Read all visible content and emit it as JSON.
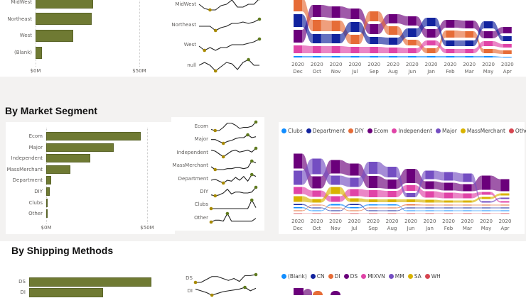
{
  "colors": {
    "bar": "#6F7A33",
    "spark_line": "#222222",
    "spark_min": "#A88A00",
    "spark_max": "#5F7A1E"
  },
  "region": {
    "bar_chart": {
      "type": "bar",
      "categories": [
        "MidWest",
        "Northeast",
        "West",
        "(Blank)"
      ],
      "values": [
        27.7,
        27,
        18,
        3
      ],
      "xlim": [
        0,
        50
      ],
      "tick_labels": [
        "$0M",
        "$50M"
      ]
    },
    "sparklines": [
      {
        "label": "MidWest",
        "values": [
          6,
          3,
          2,
          2,
          5,
          6,
          9,
          4,
          4,
          6,
          6,
          10
        ]
      },
      {
        "label": "Northeast",
        "values": [
          5,
          5,
          5,
          2,
          4,
          5,
          7,
          7,
          8,
          7,
          8,
          10
        ]
      },
      {
        "label": "West",
        "values": [
          4,
          1,
          3,
          1,
          3,
          3,
          5,
          5,
          5,
          6,
          7,
          9
        ]
      },
      {
        "label": "null",
        "values": [
          5,
          7,
          5,
          1,
          4,
          7,
          6,
          2,
          7,
          9,
          5,
          5
        ]
      }
    ]
  },
  "segment": {
    "title": "By Market Segment",
    "bar_chart": {
      "type": "bar",
      "categories": [
        "Ecom",
        "Major",
        "Independent",
        "MassMerchant",
        "Department",
        "DIY",
        "Clubs",
        "Other"
      ],
      "values": [
        47,
        33.5,
        22,
        12,
        2.5,
        1.8,
        0.6,
        0.2
      ],
      "xlim": [
        0,
        50
      ],
      "tick_labels": [
        "$0M",
        "$50M"
      ]
    },
    "sparklines": [
      {
        "label": "Ecom",
        "values": [
          3,
          2,
          2,
          5,
          9,
          9,
          7,
          4,
          5,
          5,
          6,
          10
        ]
      },
      {
        "label": "Major",
        "values": [
          5,
          5,
          3,
          1,
          3,
          4,
          6,
          7,
          7,
          10,
          7,
          8
        ]
      },
      {
        "label": "Independent",
        "values": [
          8,
          7,
          4,
          1,
          4,
          7,
          8,
          6,
          7,
          8,
          6,
          10
        ]
      },
      {
        "label": "MassMerchant",
        "values": [
          4,
          1,
          1,
          1,
          2,
          2,
          3,
          3,
          2,
          3,
          10,
          8
        ]
      },
      {
        "label": "Department",
        "values": [
          4,
          5,
          3,
          1,
          4,
          3,
          7,
          4,
          8,
          3,
          10,
          8
        ]
      },
      {
        "label": "DIY",
        "values": [
          2,
          1,
          2,
          4,
          8,
          3,
          5,
          5,
          4,
          4,
          5,
          10
        ]
      },
      {
        "label": "Clubs",
        "values": [
          1,
          1,
          1,
          1,
          1,
          1,
          1,
          1,
          1,
          1,
          10,
          2
        ]
      },
      {
        "label": "Other",
        "values": [
          1,
          3,
          3,
          2,
          10,
          2,
          2,
          2,
          2,
          2,
          2,
          5
        ]
      }
    ]
  },
  "shipping": {
    "title": "By Shipping Methods",
    "bar_chart": {
      "type": "bar",
      "categories": [
        "DS",
        "DI"
      ],
      "values": [
        43,
        26
      ],
      "xlim": [
        0,
        50
      ]
    },
    "sparklines": [
      {
        "label": "DS",
        "values": [
          2,
          2,
          5,
          8,
          8,
          6,
          4,
          6,
          3,
          9,
          9,
          10
        ]
      },
      {
        "label": "DI",
        "values": [
          8,
          6,
          4,
          1,
          3,
          5,
          6,
          7,
          8,
          10,
          6,
          9
        ]
      }
    ],
    "legend": [
      {
        "name": "(Blank)",
        "color": "#118DFF"
      },
      {
        "name": "CN",
        "color": "#12239E"
      },
      {
        "name": "DI",
        "color": "#E66C37"
      },
      {
        "name": "DS",
        "color": "#6B007B"
      },
      {
        "name": "MIXVN",
        "color": "#E044A7"
      },
      {
        "name": "MM",
        "color": "#744EC2"
      },
      {
        "name": "SA",
        "color": "#D9B300"
      },
      {
        "name": "WH",
        "color": "#D64550"
      }
    ]
  },
  "chart_data": [
    {
      "type": "ribbon",
      "year": "2020",
      "categories": [
        "Dec",
        "Oct",
        "Nov",
        "Jul",
        "Sep",
        "Aug",
        "Jun",
        "Jan",
        "Feb",
        "Mar",
        "May",
        "Apr"
      ],
      "series": [
        {
          "color": "#6B007B",
          "values": [
            18,
            17,
            16,
            15,
            14,
            13,
            13,
            12,
            11,
            11,
            10,
            9
          ]
        },
        {
          "color": "#E66C37",
          "values": [
            19,
            16,
            15,
            13,
            14,
            12,
            8,
            7,
            10,
            9,
            6,
            5
          ]
        },
        {
          "color": "#12239E",
          "values": [
            18,
            13,
            13,
            14,
            10,
            10,
            12,
            12,
            8,
            8,
            10,
            7
          ]
        },
        {
          "color": "#E044A7",
          "values": [
            11,
            10,
            10,
            9,
            9,
            8,
            7,
            7,
            6,
            6,
            7,
            5
          ]
        },
        {
          "color": "#118DFF",
          "values": [
            2,
            2,
            2,
            2,
            2,
            2,
            2,
            2,
            2,
            2,
            2,
            1
          ]
        }
      ]
    },
    {
      "type": "ribbon",
      "year": "2020",
      "categories": [
        "Dec",
        "Oct",
        "Nov",
        "Jul",
        "Sep",
        "Aug",
        "Jun",
        "Jan",
        "Feb",
        "Mar",
        "May",
        "Apr"
      ],
      "legend": "top-left",
      "series": [
        {
          "name": "Clubs",
          "color": "#118DFF",
          "values": [
            1.5,
            1,
            2,
            1.5,
            1.5,
            1.5,
            1,
            1,
            1,
            1,
            1,
            1
          ]
        },
        {
          "name": "Department",
          "color": "#12239E",
          "values": [
            1.5,
            1,
            1,
            1.5,
            1,
            1,
            1,
            1,
            1,
            1,
            1,
            1
          ]
        },
        {
          "name": "DIY",
          "color": "#E66C37",
          "values": [
            1,
            1,
            1,
            1,
            1,
            1,
            1.5,
            1,
            1,
            1,
            1,
            1
          ]
        },
        {
          "name": "Ecom",
          "color": "#6B007B",
          "values": [
            21,
            17,
            19,
            17,
            17,
            13,
            20,
            11,
            11,
            10,
            20,
            17
          ]
        },
        {
          "name": "Independent",
          "color": "#E044A7",
          "values": [
            10,
            9,
            8,
            10,
            10,
            9,
            8,
            9,
            8,
            7,
            4,
            2
          ]
        },
        {
          "name": "Major",
          "color": "#744EC2",
          "values": [
            20,
            22,
            13,
            13,
            17,
            15,
            6,
            12,
            12,
            12,
            2,
            2
          ]
        },
        {
          "name": "MassMerchant",
          "color": "#D9B300",
          "values": [
            8,
            5,
            10,
            5,
            4,
            4,
            4,
            4,
            3,
            3,
            3,
            3
          ]
        },
        {
          "name": "Other",
          "color": "#D64550",
          "values": [
            0.5,
            0.5,
            0.5,
            0.5,
            0.5,
            0.5,
            0.5,
            0.5,
            0.5,
            0.5,
            0.5,
            0.5
          ]
        }
      ]
    }
  ]
}
